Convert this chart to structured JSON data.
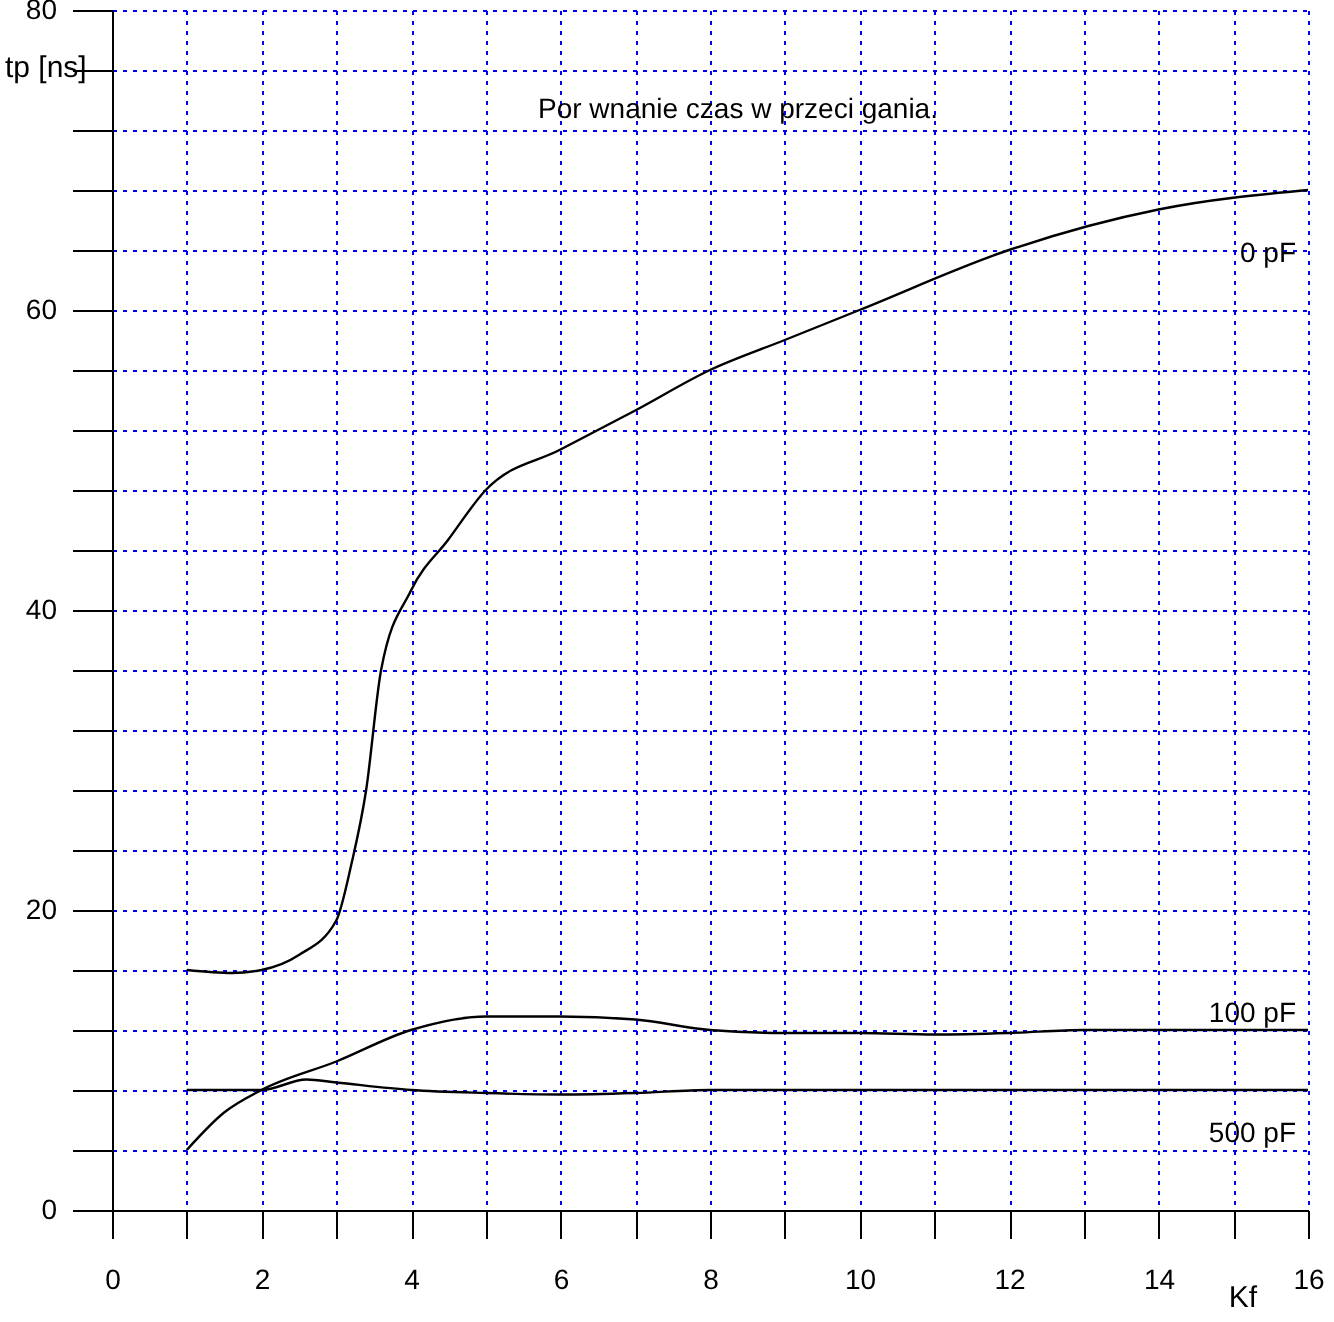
{
  "chart_data": {
    "type": "line",
    "title": "Por wnanie czas w przeci gania.",
    "xlabel": "Kf",
    "ylabel": "tp [ns]",
    "xlim": [
      0,
      16
    ],
    "ylim": [
      0,
      80
    ],
    "xticks": [
      0,
      {
        "value": 1,
        "label": null
      },
      2,
      {
        "value": 3,
        "label": null
      },
      4,
      {
        "value": 5,
        "label": null
      },
      6,
      {
        "value": 7,
        "label": null
      },
      8,
      {
        "value": 9,
        "label": null
      },
      10,
      {
        "value": 11,
        "label": null
      },
      12,
      {
        "value": 13,
        "label": null
      },
      14,
      {
        "value": 15,
        "label": null
      },
      16
    ],
    "yticks": [
      0,
      {
        "value": 4,
        "label": null
      },
      {
        "value": 8,
        "label": null
      },
      {
        "value": 12,
        "label": null
      },
      {
        "value": 16,
        "label": null
      },
      20,
      {
        "value": 24,
        "label": null
      },
      {
        "value": 28,
        "label": null
      },
      {
        "value": 32,
        "label": null
      },
      {
        "value": 36,
        "label": null
      },
      40,
      {
        "value": 44,
        "label": null
      },
      {
        "value": 48,
        "label": null
      },
      {
        "value": 52,
        "label": null
      },
      {
        "value": 56,
        "label": null
      },
      60,
      {
        "value": 64,
        "label": null
      },
      {
        "value": 68,
        "label": null
      },
      {
        "value": 72,
        "label": null
      },
      {
        "value": 76,
        "label": null
      },
      80
    ],
    "grid": true,
    "legend": false,
    "marker": "none",
    "line_style": "solid",
    "series": [
      {
        "name": "0 pF",
        "color": "#000000",
        "x": [
          1,
          1.6,
          2,
          2.5,
          3,
          3.2,
          3.4,
          3.6,
          4,
          4.5,
          5,
          6,
          7,
          8,
          9,
          10,
          12,
          14,
          16
        ],
        "values": [
          16,
          15.8,
          16,
          17,
          19.3,
          23,
          28,
          36,
          41.3,
          44.7,
          48,
          50.7,
          53.3,
          56,
          58,
          60,
          64,
          66.7,
          68
        ]
      },
      {
        "name": "100 pF",
        "color": "#000000",
        "x": [
          1,
          1.5,
          2,
          3,
          4,
          5,
          6,
          7,
          8,
          9,
          10,
          11,
          12,
          13,
          14,
          16
        ],
        "values": [
          4,
          6.5,
          8,
          9.9,
          12,
          12.9,
          12.9,
          12.7,
          12,
          11.8,
          11.8,
          11.7,
          11.8,
          12,
          12,
          12
        ]
      },
      {
        "name": "500 pF",
        "color": "#000000",
        "x": [
          1,
          2,
          2.6,
          3,
          4,
          5,
          6,
          7,
          8,
          10,
          12,
          13.6,
          16
        ],
        "values": [
          8,
          8,
          8.7,
          8.5,
          8,
          7.8,
          7.7,
          7.8,
          8,
          8,
          8,
          8,
          8
        ]
      }
    ]
  }
}
